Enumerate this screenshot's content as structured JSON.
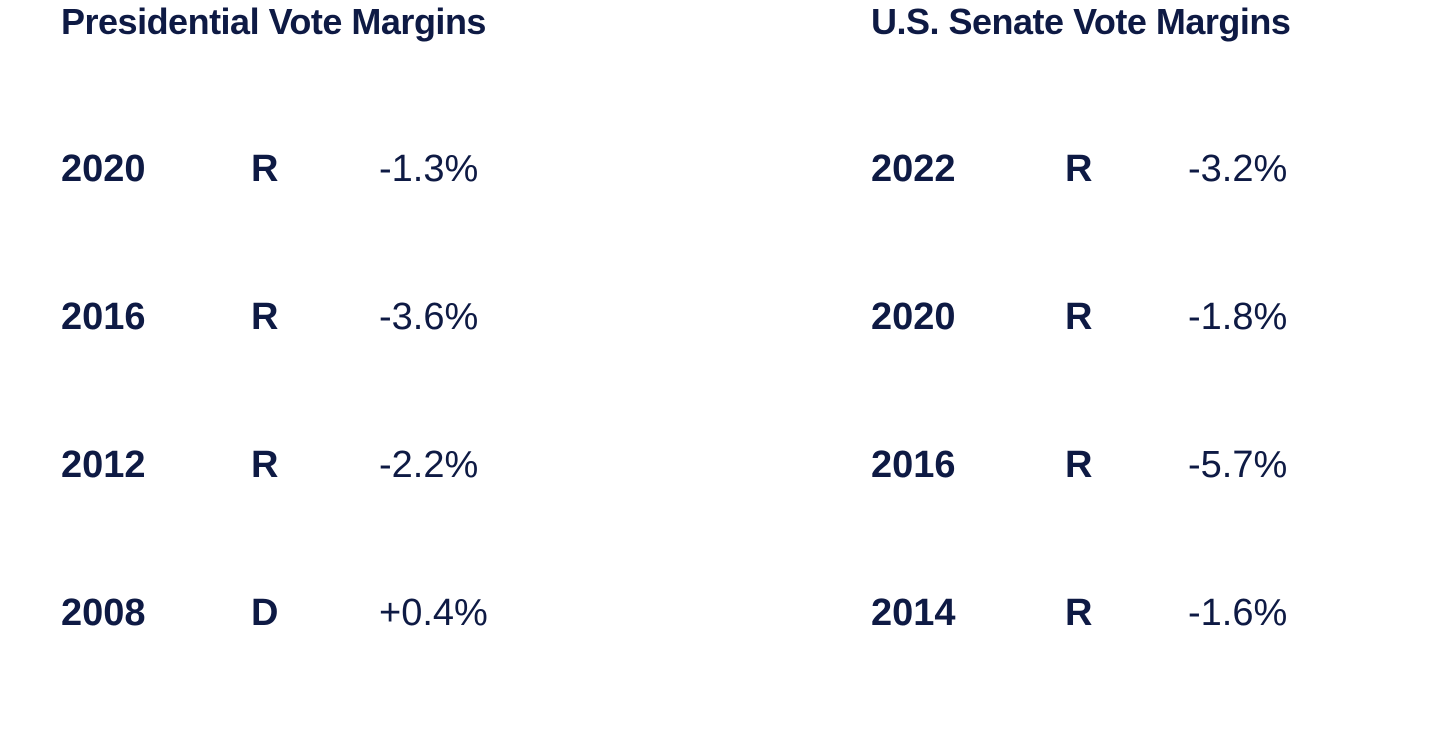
{
  "presidential": {
    "title": "Presidential Vote Margins",
    "rows": [
      {
        "year": "2020",
        "party": "R",
        "margin": "-1.3%"
      },
      {
        "year": "2016",
        "party": "R",
        "margin": "-3.6%"
      },
      {
        "year": "2012",
        "party": "R",
        "margin": "-2.2%"
      },
      {
        "year": "2008",
        "party": "D",
        "margin": "+0.4%"
      }
    ]
  },
  "senate": {
    "title": "U.S. Senate Vote Margins",
    "rows": [
      {
        "year": "2022",
        "party": "R",
        "margin": "-3.2%"
      },
      {
        "year": "2020",
        "party": "R",
        "margin": "-1.8%"
      },
      {
        "year": "2016",
        "party": "R",
        "margin": "-5.7%"
      },
      {
        "year": "2014",
        "party": "R",
        "margin": "-1.6%"
      }
    ]
  },
  "colors": {
    "text": "#0e1a44",
    "background": "#ffffff"
  }
}
